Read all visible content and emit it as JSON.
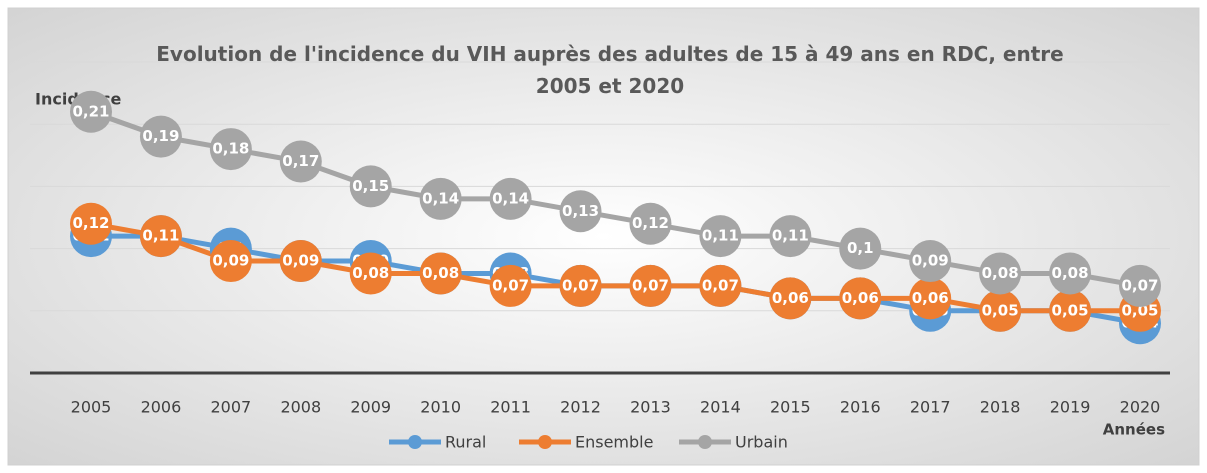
{
  "chart_data": {
    "type": "line",
    "title": "Evolution de l'incidence du VIH auprès des adultes de 15 à 49 ans en RDC, entre 2005 et 2020",
    "y_label": "Incidence",
    "x_label": "Années",
    "categories": [
      "2005",
      "2006",
      "2007",
      "2008",
      "2009",
      "2010",
      "2011",
      "2012",
      "2013",
      "2014",
      "2015",
      "2016",
      "2017",
      "2018",
      "2019",
      "2020"
    ],
    "ylim": [
      0,
      0.25
    ],
    "yticks": [
      0.05,
      0.1,
      0.15,
      0.2,
      0.25
    ],
    "grid": true,
    "legend": "bottom",
    "series": [
      {
        "name": "Rural",
        "color": "#5b9bd5",
        "values": [
          0.11,
          0.11,
          0.1,
          0.09,
          0.09,
          0.08,
          0.08,
          0.07,
          0.07,
          0.07,
          0.06,
          0.06,
          0.05,
          0.05,
          0.05,
          0.04
        ],
        "value_labels": [
          "0,11",
          "0,11",
          "0,1",
          "0,09",
          "0,09",
          "0,08",
          "0,08",
          "0,07",
          "0,07",
          "0,07",
          "0,06",
          "0,06",
          "0,05",
          "0,05",
          "0,05",
          "0,04"
        ]
      },
      {
        "name": "Ensemble",
        "color": "#ed7d31",
        "values": [
          0.12,
          0.11,
          0.09,
          0.09,
          0.08,
          0.08,
          0.07,
          0.07,
          0.07,
          0.07,
          0.06,
          0.06,
          0.06,
          0.05,
          0.05,
          0.05
        ],
        "value_labels": [
          "0,12",
          "0,11",
          "0,09",
          "0,09",
          "0,08",
          "0,08",
          "0,07",
          "0,07",
          "0,07",
          "0,07",
          "0,06",
          "0,06",
          "0,06",
          "0,05",
          "0,05",
          "0,05"
        ]
      },
      {
        "name": "Urbain",
        "color": "#a5a5a5",
        "values": [
          0.21,
          0.19,
          0.18,
          0.17,
          0.15,
          0.14,
          0.14,
          0.13,
          0.12,
          0.11,
          0.11,
          0.1,
          0.09,
          0.08,
          0.08,
          0.07
        ],
        "value_labels": [
          "0,21",
          "0,19",
          "0,18",
          "0,17",
          "0,15",
          "0,14",
          "0,14",
          "0,13",
          "0,12",
          "0,11",
          "0,11",
          "0,1",
          "0,09",
          "0,08",
          "0,08",
          "0,07"
        ]
      }
    ]
  }
}
